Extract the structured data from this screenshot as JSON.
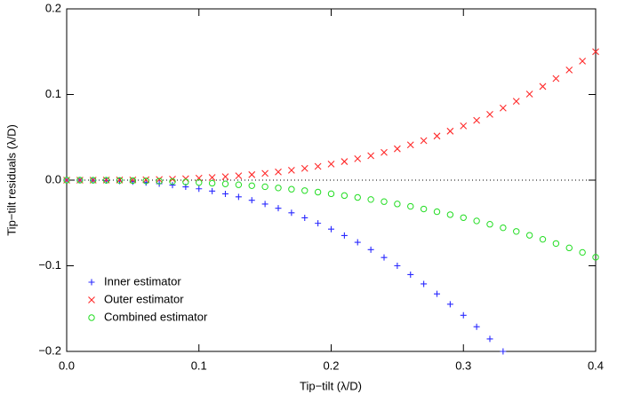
{
  "chart_data": {
    "type": "scatter",
    "xlabel": "Tip−tilt (λ/D)",
    "ylabel": "Tip−tilt residuals (λ/D)",
    "x": [
      0,
      0.01,
      0.02,
      0.03,
      0.04,
      0.05,
      0.06,
      0.07,
      0.08,
      0.09,
      0.1,
      0.11,
      0.12,
      0.13,
      0.14,
      0.15,
      0.16,
      0.17,
      0.18,
      0.19,
      0.2,
      0.21,
      0.22,
      0.23,
      0.24,
      0.25,
      0.26,
      0.27,
      0.28,
      0.29,
      0.3,
      0.31,
      0.32,
      0.33,
      0.34,
      0.35,
      0.36,
      0.37,
      0.38,
      0.39,
      0.4
    ],
    "series": [
      {
        "name": "Inner estimator",
        "color": "#2a2aff",
        "marker": "plus",
        "values": [
          0,
          0,
          -0.0002,
          -0.0005,
          -0.001,
          -0.0018,
          -0.0028,
          -0.0041,
          -0.0058,
          -0.0078,
          -0.0101,
          -0.0128,
          -0.016,
          -0.0195,
          -0.0235,
          -0.0279,
          -0.0328,
          -0.0381,
          -0.044,
          -0.0504,
          -0.0572,
          -0.0647,
          -0.0726,
          -0.0812,
          -0.0903,
          -0.1,
          -0.1103,
          -0.1212,
          -0.1328,
          -0.1449,
          -0.1578,
          -0.1712,
          -0.1854,
          -0.2,
          null,
          null,
          null,
          null,
          null,
          null,
          null
        ]
      },
      {
        "name": "Outer estimator",
        "color": "#ff2a2a",
        "marker": "cross",
        "values": [
          0,
          0,
          0,
          0.0001,
          0.0002,
          0.0003,
          0.0005,
          0.0008,
          0.0012,
          0.0017,
          0.0023,
          0.0031,
          0.004,
          0.0051,
          0.0064,
          0.0079,
          0.0096,
          0.0115,
          0.0137,
          0.0161,
          0.0188,
          0.0217,
          0.025,
          0.0285,
          0.0324,
          0.0366,
          0.0412,
          0.0461,
          0.0515,
          0.0572,
          0.0633,
          0.0698,
          0.0768,
          0.0842,
          0.0921,
          0.1005,
          0.1094,
          0.1187,
          0.1286,
          0.139,
          0.15
        ]
      },
      {
        "name": "Combined estimator",
        "color": "#22dd22",
        "marker": "circle",
        "values": [
          0,
          0,
          -0.0001,
          -0.0001,
          -0.0003,
          -0.0005,
          -0.0008,
          -0.0012,
          -0.0016,
          -0.0022,
          -0.0028,
          -0.0036,
          -0.0044,
          -0.0054,
          -0.0065,
          -0.0077,
          -0.0091,
          -0.0106,
          -0.0122,
          -0.014,
          -0.0159,
          -0.018,
          -0.0202,
          -0.0226,
          -0.0251,
          -0.0278,
          -0.0306,
          -0.0337,
          -0.0369,
          -0.0403,
          -0.0438,
          -0.0476,
          -0.0515,
          -0.0556,
          -0.0599,
          -0.0644,
          -0.0691,
          -0.074,
          -0.0791,
          -0.0844,
          -0.09
        ]
      }
    ],
    "xlim": [
      0,
      0.4
    ],
    "ylim": [
      -0.2,
      0.2
    ],
    "xticks": [
      {
        "value": 0,
        "label": "0.0"
      },
      0.1,
      0.2,
      0.3,
      0.4
    ],
    "yticks": [
      {
        "value": -0.2,
        "label": "−0.2"
      },
      {
        "value": -0.1,
        "label": "−0.1"
      },
      {
        "value": 0,
        "label": "0.0"
      },
      0.1,
      0.2
    ],
    "reference_line": 0,
    "legend": "lower left"
  }
}
